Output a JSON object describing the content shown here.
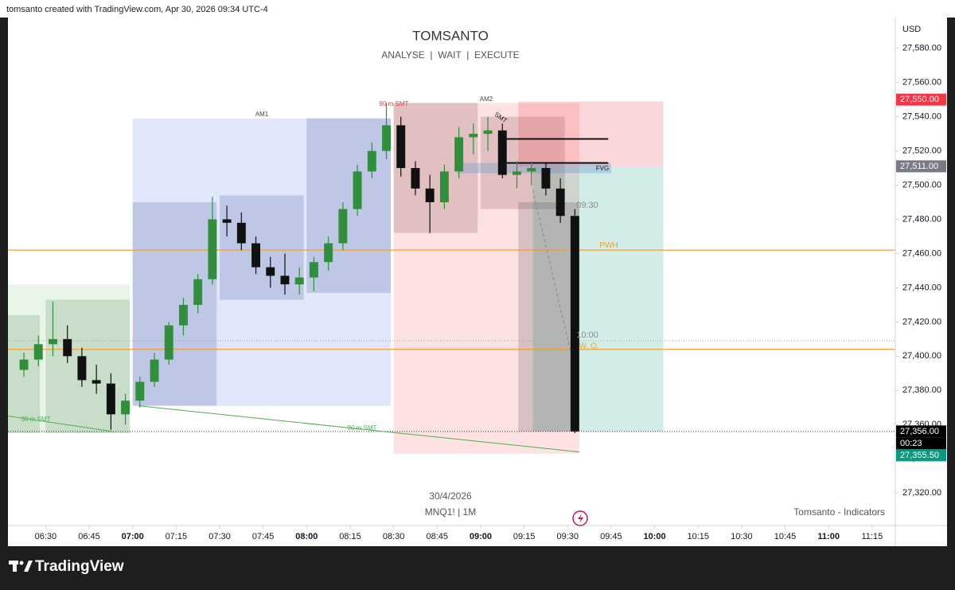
{
  "header": {
    "caption": "tomsanto created with TradingView.com, Apr 30, 2026 09:34 UTC-4"
  },
  "footer": {
    "brand": "TradingView"
  },
  "chart_data": {
    "type": "candlestick",
    "title": "TOMSANTO",
    "subtitle": "ANALYSE  |  WAIT  |  EXECUTE",
    "date": "30/4/2026",
    "symbol": "MNQ1! | 1M",
    "indicator_credit": "Tomsanto - Indicators",
    "currency": "USD",
    "up_color": "#2f8f3a",
    "down_color": "#111111",
    "x": [
      "06:20",
      "06:25",
      "06:30",
      "06:35",
      "06:40",
      "06:45",
      "06:50",
      "06:55",
      "07:00",
      "07:05",
      "07:10",
      "07:15",
      "07:20",
      "07:25",
      "07:30",
      "07:35",
      "07:40",
      "07:45",
      "07:50",
      "07:55",
      "08:00",
      "08:05",
      "08:10",
      "08:15",
      "08:20",
      "08:25",
      "08:30",
      "08:35",
      "08:40",
      "08:45",
      "08:50",
      "08:55",
      "09:00",
      "09:05",
      "09:10",
      "09:15",
      "09:20",
      "09:25",
      "09:30"
    ],
    "open": [
      27392,
      27398,
      27407,
      27410,
      27400,
      27386,
      27384,
      27366,
      27374,
      27385,
      27398,
      27418,
      27430,
      27445,
      27480,
      27478,
      27466,
      27452,
      27447,
      27442,
      27446,
      27455,
      27466,
      27486,
      27508,
      27520,
      27535,
      27510,
      27498,
      27490,
      27508,
      27528,
      27530,
      27532,
      27506,
      27508,
      27510,
      27498,
      27482
    ],
    "high": [
      27402,
      27412,
      27432,
      27418,
      27405,
      27395,
      27390,
      27378,
      27388,
      27402,
      27420,
      27434,
      27448,
      27493,
      27488,
      27484,
      27470,
      27458,
      27460,
      27452,
      27458,
      27470,
      27490,
      27512,
      27525,
      27548,
      27540,
      27514,
      27506,
      27512,
      27534,
      27536,
      27540,
      27536,
      27514,
      27514,
      27513,
      27504,
      27486
    ],
    "low": [
      27388,
      27394,
      27400,
      27396,
      27382,
      27378,
      27357,
      27360,
      27370,
      27382,
      27395,
      27412,
      27425,
      27442,
      27470,
      27462,
      27448,
      27440,
      27436,
      27436,
      27438,
      27450,
      27462,
      27482,
      27504,
      27515,
      27505,
      27494,
      27472,
      27486,
      27504,
      27518,
      27520,
      27504,
      27498,
      27500,
      27494,
      27478,
      27355
    ],
    "close": [
      27398,
      27407,
      27410,
      27400,
      27386,
      27384,
      27366,
      27374,
      27385,
      27398,
      27418,
      27430,
      27445,
      27480,
      27478,
      27466,
      27452,
      27447,
      27442,
      27446,
      27455,
      27466,
      27486,
      27508,
      27520,
      27535,
      27510,
      27498,
      27490,
      27508,
      27528,
      27530,
      27532,
      27506,
      27508,
      27510,
      27498,
      27482,
      27356
    ],
    "xlim": [
      "06:17",
      "11:23"
    ],
    "xticks": [
      "06:30",
      "06:45",
      "07:00",
      "07:15",
      "07:30",
      "07:45",
      "08:00",
      "08:15",
      "08:30",
      "08:45",
      "09:00",
      "09:15",
      "09:30",
      "09:45",
      "10:00",
      "10:15",
      "10:30",
      "10:45",
      "11:00",
      "11:15"
    ],
    "ylim": [
      27301,
      27598
    ],
    "yticks": [
      {
        "value": 27580,
        "label": "27,580.00"
      },
      {
        "value": 27560,
        "label": "27,560.00"
      },
      {
        "value": 27540,
        "label": "27,540.00"
      },
      {
        "value": 27520,
        "label": "27,520.00"
      },
      {
        "value": 27500,
        "label": "27,500.00"
      },
      {
        "value": 27480,
        "label": "27,480.00"
      },
      {
        "value": 27460,
        "label": "27,460.00"
      },
      {
        "value": 27440,
        "label": "27,440.00"
      },
      {
        "value": 27420,
        "label": "27,420.00"
      },
      {
        "value": 27400,
        "label": "27,400.00"
      },
      {
        "value": 27380,
        "label": "27,380.00"
      },
      {
        "value": 27360,
        "label": "27,360.00"
      },
      {
        "value": 27340,
        "label": "27,340.00"
      },
      {
        "value": 27320,
        "label": "27,320.00"
      }
    ],
    "price_labels": [
      {
        "value": 27550,
        "label": "27,550.00",
        "color": "#f23645"
      },
      {
        "value": 27511,
        "label": "27,511.00",
        "color": "#787b86"
      },
      {
        "value": 27356,
        "label": "27,356.00",
        "color": "#000000"
      },
      {
        "value": 27355.5,
        "label": "27,355.50",
        "color": "#089981"
      }
    ],
    "countdown": "00:23",
    "levels": [
      {
        "name": "PWH",
        "value": 27462,
        "color": "#f0a030"
      },
      {
        "name": "W. O.",
        "value": 27404,
        "color": "#f0a030"
      }
    ],
    "guides": [
      27409
    ],
    "zones": [
      {
        "start": "06:17",
        "end": "06:59",
        "top": 27442,
        "bottom": 27355,
        "color": "rgba(76,175,80,0.13)"
      },
      {
        "start": "06:30",
        "end": "06:59",
        "top": 27433,
        "bottom": 27355,
        "color": "rgba(60,120,60,0.18)"
      },
      {
        "start": "06:17",
        "end": "06:28",
        "top": 27424,
        "bottom": 27355,
        "color": "rgba(60,120,60,0.18)"
      },
      {
        "start": "07:00",
        "end": "08:29",
        "top": 27539,
        "bottom": 27371,
        "color": "rgba(66,100,230,0.16)"
      },
      {
        "start": "07:00",
        "end": "07:29",
        "top": 27490,
        "bottom": 27371,
        "color": "rgba(40,60,140,0.18)"
      },
      {
        "start": "07:30",
        "end": "07:59",
        "top": 27494,
        "bottom": 27433,
        "color": "rgba(40,60,140,0.18)"
      },
      {
        "start": "08:00",
        "end": "08:29",
        "top": 27539,
        "bottom": 27437,
        "color": "rgba(40,60,140,0.18)"
      },
      {
        "start": "08:30",
        "end": "09:34",
        "top": 27548,
        "bottom": 27343,
        "color": "rgba(242,54,69,0.15)"
      },
      {
        "start": "08:30",
        "end": "08:59",
        "top": 27548,
        "bottom": 27472,
        "color": "rgba(120,60,60,0.2)"
      },
      {
        "start": "09:00",
        "end": "09:29",
        "top": 27540,
        "bottom": 27486,
        "color": "rgba(120,60,60,0.2)"
      },
      {
        "start": "09:13",
        "end": "10:03",
        "top": 27549,
        "bottom": 27511,
        "color": "rgba(242,54,69,0.2)"
      },
      {
        "start": "09:18",
        "end": "10:03",
        "top": 27511,
        "bottom": 27356,
        "color": "rgba(8,153,129,0.18)"
      },
      {
        "start": "09:13",
        "end": "09:34",
        "top": 27490,
        "bottom": 27356,
        "color": "rgba(60,60,60,0.2)"
      },
      {
        "start": "08:52",
        "end": "09:45",
        "top": 27513,
        "bottom": 27507,
        "color": "rgba(100,150,200,0.35)"
      }
    ],
    "hlines": [
      {
        "start": "09:09",
        "end": "09:44",
        "value": 27527
      },
      {
        "start": "09:09",
        "end": "09:44",
        "value": 27513
      }
    ],
    "trendlines": [
      {
        "start": "06:17",
        "start_value": 27365,
        "end": "06:53",
        "end_value": 27356,
        "color": "#4caf50"
      },
      {
        "start": "07:02",
        "start_value": 27371,
        "end": "09:34",
        "end_value": 27344,
        "color": "#4caf50"
      },
      {
        "start": "09:18",
        "start_value": 27497,
        "end": "09:31",
        "end_value": 27403,
        "color": "#888888"
      }
    ],
    "annotations": [
      {
        "text": "AM1",
        "color": "#444444"
      },
      {
        "text": "AM2",
        "color": "#444444"
      },
      {
        "text": "90 m SMT",
        "color": "#e04040"
      },
      {
        "text": "SMT",
        "color": "#111111"
      },
      {
        "text": "30 m SMT",
        "color": "#4caf50"
      },
      {
        "text": "90 m SMT",
        "color": "#4caf50"
      },
      {
        "text": "09:30",
        "color": "#888888"
      },
      {
        "text": "10:00",
        "color": "#888888"
      },
      {
        "text": "FVG",
        "color": "#222222"
      }
    ]
  }
}
